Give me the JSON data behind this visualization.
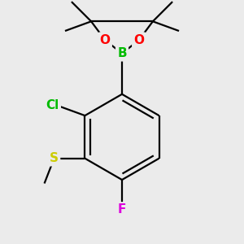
{
  "background_color": "#ebebeb",
  "atom_colors": {
    "B": "#00bb00",
    "O": "#ff0000",
    "Cl": "#00bb00",
    "F": "#dd00dd",
    "S": "#cccc00",
    "C": "#000000"
  },
  "bond_color": "#000000",
  "bond_lw": 1.6,
  "font_size": 11,
  "figsize": [
    3.0,
    3.0
  ],
  "dpi": 100
}
